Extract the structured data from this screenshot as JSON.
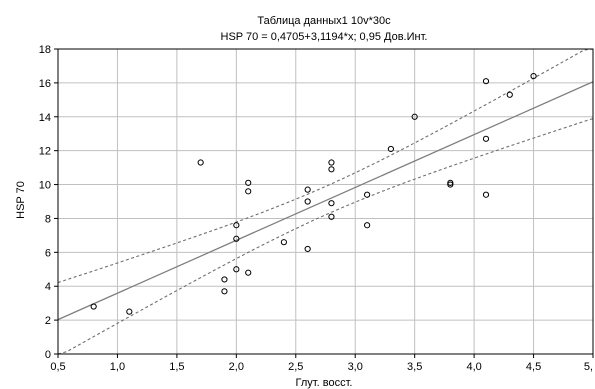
{
  "chart_data": {
    "type": "scatter",
    "title": "Таблица данных1 10v*30c",
    "subtitle": "HSP 70 = 0,4705+3,1194*x; 0,95 Дов.Инт.",
    "xlabel": "Глут. восст.",
    "ylabel": "HSP 70",
    "xlim": [
      0.5,
      5.0
    ],
    "ylim": [
      0,
      18
    ],
    "grid": true,
    "x_ticks": [
      0.5,
      1.0,
      1.5,
      2.0,
      2.5,
      3.0,
      3.5,
      4.0,
      4.5,
      5.0
    ],
    "x_tick_labels": [
      "0,5",
      "1,0",
      "1,5",
      "2,0",
      "2,5",
      "3,0",
      "3,5",
      "4,0",
      "4,5",
      "5,"
    ],
    "y_ticks": [
      0,
      2,
      4,
      6,
      8,
      10,
      12,
      14,
      16,
      18
    ],
    "y_tick_labels": [
      "0",
      "2",
      "4",
      "6",
      "8",
      "10",
      "12",
      "14",
      "16",
      "18"
    ],
    "regression": {
      "intercept": 0.4705,
      "slope": 3.1194
    },
    "confidence_level": 0.95,
    "colors": {
      "points": "#000000",
      "fit_line": "#808080",
      "ci_line": "#707070",
      "grid": "#c0c0c0"
    },
    "points": [
      {
        "x": 0.8,
        "y": 2.8
      },
      {
        "x": 1.1,
        "y": 2.5
      },
      {
        "x": 1.7,
        "y": 11.3
      },
      {
        "x": 1.9,
        "y": 4.4
      },
      {
        "x": 1.9,
        "y": 3.7
      },
      {
        "x": 2.0,
        "y": 7.6
      },
      {
        "x": 2.0,
        "y": 6.8
      },
      {
        "x": 2.0,
        "y": 5.0
      },
      {
        "x": 2.1,
        "y": 10.1
      },
      {
        "x": 2.1,
        "y": 9.6
      },
      {
        "x": 2.1,
        "y": 4.8
      },
      {
        "x": 2.4,
        "y": 6.6
      },
      {
        "x": 2.6,
        "y": 9.7
      },
      {
        "x": 2.6,
        "y": 9.0
      },
      {
        "x": 2.6,
        "y": 6.2
      },
      {
        "x": 2.8,
        "y": 11.3
      },
      {
        "x": 2.8,
        "y": 10.9
      },
      {
        "x": 2.8,
        "y": 8.9
      },
      {
        "x": 2.8,
        "y": 8.1
      },
      {
        "x": 3.1,
        "y": 9.4
      },
      {
        "x": 3.1,
        "y": 7.6
      },
      {
        "x": 3.3,
        "y": 12.1
      },
      {
        "x": 3.5,
        "y": 14.0
      },
      {
        "x": 3.8,
        "y": 10.1
      },
      {
        "x": 3.8,
        "y": 10.0
      },
      {
        "x": 4.1,
        "y": 16.1
      },
      {
        "x": 4.1,
        "y": 12.7
      },
      {
        "x": 4.1,
        "y": 9.4
      },
      {
        "x": 4.3,
        "y": 15.3
      },
      {
        "x": 4.5,
        "y": 16.4
      }
    ]
  }
}
